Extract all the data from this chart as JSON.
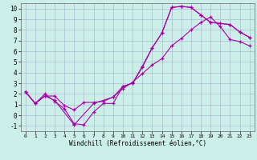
{
  "xlabel": "Windchill (Refroidissement éolien,°C)",
  "bg_color": "#cceee8",
  "grid_color": "#aabbcc",
  "line_color": "#aa00aa",
  "xlim": [
    -0.5,
    23.5
  ],
  "ylim": [
    -1.5,
    10.5
  ],
  "xticks": [
    0,
    1,
    2,
    3,
    4,
    5,
    6,
    7,
    8,
    9,
    10,
    11,
    12,
    13,
    14,
    15,
    16,
    17,
    18,
    19,
    20,
    21,
    22,
    23
  ],
  "yticks": [
    -1,
    0,
    1,
    2,
    3,
    4,
    5,
    6,
    7,
    8,
    9,
    10
  ],
  "curve1_x": [
    0,
    1,
    2,
    3,
    4,
    5,
    6,
    7,
    8,
    9,
    10,
    11,
    12,
    13,
    14,
    15,
    16,
    17,
    18,
    19,
    20,
    21,
    22,
    23
  ],
  "curve1_y": [
    2.2,
    1.1,
    2.0,
    1.3,
    0.6,
    -0.8,
    -0.9,
    0.3,
    1.1,
    1.1,
    2.7,
    3.0,
    4.6,
    6.3,
    7.7,
    10.1,
    10.2,
    10.1,
    9.4,
    8.7,
    8.6,
    8.5,
    7.8,
    7.3
  ],
  "curve2_x": [
    0,
    1,
    2,
    3,
    5,
    7,
    9,
    10,
    11,
    12,
    13,
    14,
    15,
    16,
    17,
    18,
    19,
    20,
    21,
    22,
    23
  ],
  "curve2_y": [
    2.2,
    1.1,
    1.8,
    1.4,
    -0.9,
    1.1,
    1.7,
    2.7,
    3.0,
    4.5,
    6.3,
    7.7,
    10.1,
    10.2,
    10.1,
    9.4,
    8.7,
    8.6,
    8.5,
    7.8,
    7.3
  ],
  "curve3_x": [
    0,
    1,
    2,
    3,
    4,
    5,
    6,
    7,
    8,
    9,
    10,
    11,
    12,
    13,
    14,
    15,
    16,
    17,
    18,
    19,
    20,
    21,
    22,
    23
  ],
  "curve3_y": [
    2.2,
    1.1,
    1.8,
    1.8,
    0.9,
    0.5,
    1.2,
    1.2,
    1.3,
    1.7,
    2.5,
    3.1,
    3.9,
    4.7,
    5.3,
    6.5,
    7.2,
    8.0,
    8.7,
    9.2,
    8.3,
    7.1,
    6.9,
    6.5
  ]
}
